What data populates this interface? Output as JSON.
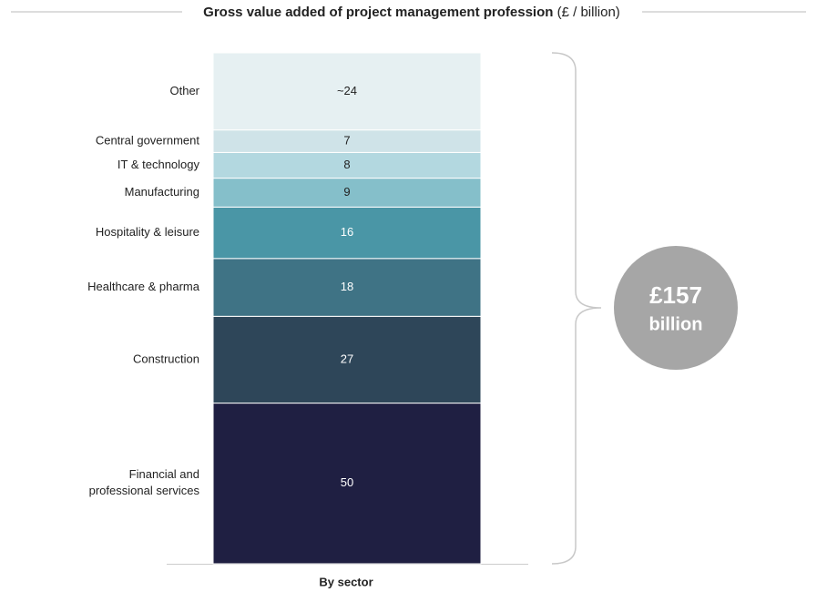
{
  "chart_data": {
    "type": "stacked-bar",
    "title": "Gross value added of project management profession",
    "title_unit": "(£ / billion)",
    "categories": [
      "By sector"
    ],
    "series": [
      {
        "name": "Financial and professional services",
        "color": "#1f1f42",
        "values": [
          50
        ]
      },
      {
        "name": "Construction",
        "color": "#2e4659",
        "values": [
          27
        ]
      },
      {
        "name": "Healthcare & pharma",
        "color": "#3f7385",
        "values": [
          18
        ]
      },
      {
        "name": "Hospitality & leisure",
        "color": "#4a96a6",
        "values": [
          16
        ]
      },
      {
        "name": "Manufacturing",
        "color": "#85bfca",
        "values": [
          9
        ]
      },
      {
        "name": "IT & technology",
        "color": "#b3d8e0",
        "values": [
          8
        ]
      },
      {
        "name": "Central government",
        "color": "#cfe3e8",
        "values": [
          7
        ]
      },
      {
        "name": "Other",
        "color": "#e6f0f2",
        "values": [
          24
        ],
        "value_labels": [
          "~24"
        ]
      }
    ],
    "annotation": {
      "value": "£157",
      "unit": "billion"
    }
  }
}
